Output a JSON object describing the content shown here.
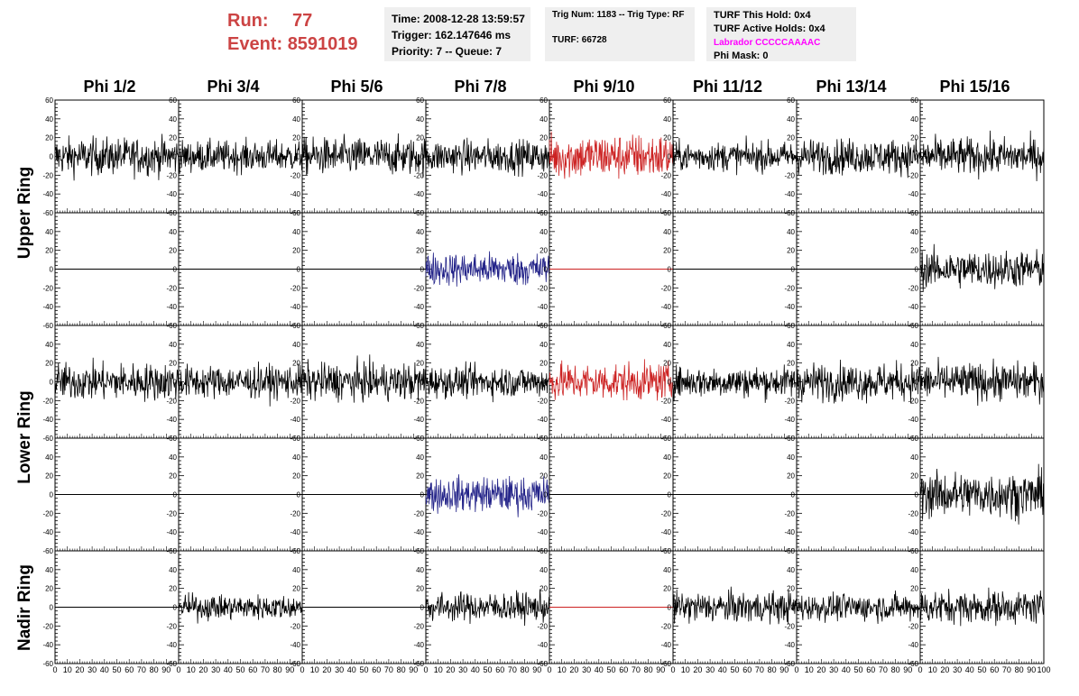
{
  "header": {
    "run_label": "Run:",
    "run_value": "77",
    "event_label": "Event:",
    "event_value": "8591019",
    "time": "Time: 2008-12-28 13:59:57",
    "trigger": "Trigger: 162.147646 ms",
    "priority": "Priority: 7 -- Queue: 7",
    "trig_num": "Trig Num: 1183 -- Trig Type: RF",
    "turf": "TURF: 66728",
    "turf_this_hold": "TURF This Hold: 0x4",
    "turf_active_holds": "TURF Active Holds: 0x4",
    "labrador": "Labrador CCCCCAAAAC",
    "phi_mask": "Phi Mask: 0"
  },
  "columns": [
    "Phi 1/2",
    "Phi 3/4",
    "Phi 5/6",
    "Phi 7/8",
    "Phi 9/10",
    "Phi 11/12",
    "Phi 13/14",
    "Phi 15/16"
  ],
  "rows": [
    "Upper Ring",
    "Lower Ring",
    "Nadir Ring"
  ],
  "colors": {
    "run_text": "#cc4444",
    "labrador_text": "#ff00ff",
    "normal_trace": "#000000",
    "triggered_trace": "#cc2222",
    "hpol_trace": "#222288"
  },
  "chart_data": {
    "type": "line",
    "description_axes": "Each panel: x = sample index, y = voltage counts",
    "xlim": [
      0,
      100
    ],
    "ylim": [
      -60,
      60
    ],
    "y_ticks": [
      -60,
      -40,
      -20,
      0,
      20,
      40,
      60
    ],
    "x_ticks": [
      0,
      10,
      20,
      30,
      40,
      50,
      60,
      70,
      80,
      90,
      100
    ],
    "panel_rows": 5,
    "panel_cols": 8,
    "panels": [
      [
        {
          "type": "noise",
          "amp": 18,
          "color": "normal_trace"
        },
        {
          "type": "noise",
          "amp": 15,
          "color": "normal_trace"
        },
        {
          "type": "noise",
          "amp": 18,
          "color": "normal_trace"
        },
        {
          "type": "noise",
          "amp": 16,
          "color": "normal_trace"
        },
        {
          "type": "noise",
          "amp": 22,
          "color": "triggered_trace"
        },
        {
          "type": "noise",
          "amp": 14,
          "color": "normal_trace"
        },
        {
          "type": "noise",
          "amp": 17,
          "color": "normal_trace"
        },
        {
          "type": "noise",
          "amp": 18,
          "color": "normal_trace"
        }
      ],
      [
        {
          "type": "flat",
          "color": "normal_trace"
        },
        {
          "type": "flat",
          "color": "normal_trace"
        },
        {
          "type": "flat",
          "color": "normal_trace"
        },
        {
          "type": "noise",
          "amp": 16,
          "color": "hpol_trace"
        },
        {
          "type": "flat",
          "color": "triggered_trace"
        },
        {
          "type": "flat",
          "color": "normal_trace"
        },
        {
          "type": "flat",
          "color": "normal_trace"
        },
        {
          "type": "noise",
          "amp": 18,
          "color": "normal_trace"
        }
      ],
      [
        {
          "type": "noise",
          "amp": 18,
          "color": "normal_trace"
        },
        {
          "type": "noise",
          "amp": 16,
          "color": "normal_trace"
        },
        {
          "type": "noise",
          "amp": 18,
          "color": "normal_trace"
        },
        {
          "type": "noise",
          "amp": 15,
          "color": "normal_trace"
        },
        {
          "type": "noise",
          "amp": 18,
          "color": "triggered_trace"
        },
        {
          "type": "noise",
          "amp": 15,
          "color": "normal_trace"
        },
        {
          "type": "noise",
          "amp": 18,
          "color": "normal_trace"
        },
        {
          "type": "noise",
          "amp": 18,
          "color": "normal_trace"
        }
      ],
      [
        {
          "type": "flat",
          "color": "normal_trace"
        },
        {
          "type": "flat",
          "color": "normal_trace"
        },
        {
          "type": "flat",
          "color": "normal_trace"
        },
        {
          "type": "noise",
          "amp": 17,
          "color": "hpol_trace"
        },
        {
          "type": "flat",
          "color": "normal_trace"
        },
        {
          "type": "flat",
          "color": "normal_trace"
        },
        {
          "type": "flat",
          "color": "normal_trace"
        },
        {
          "type": "noise",
          "amp": 22,
          "color": "normal_trace"
        }
      ],
      [
        {
          "type": "flat",
          "color": "normal_trace"
        },
        {
          "type": "noise",
          "amp": 12,
          "color": "normal_trace"
        },
        {
          "type": "flat",
          "color": "normal_trace"
        },
        {
          "type": "noise",
          "amp": 14,
          "color": "normal_trace"
        },
        {
          "type": "flat",
          "color": "triggered_trace"
        },
        {
          "type": "noise",
          "amp": 15,
          "color": "normal_trace"
        },
        {
          "type": "noise",
          "amp": 13,
          "color": "normal_trace"
        },
        {
          "type": "noise",
          "amp": 16,
          "color": "normal_trace"
        }
      ]
    ]
  }
}
